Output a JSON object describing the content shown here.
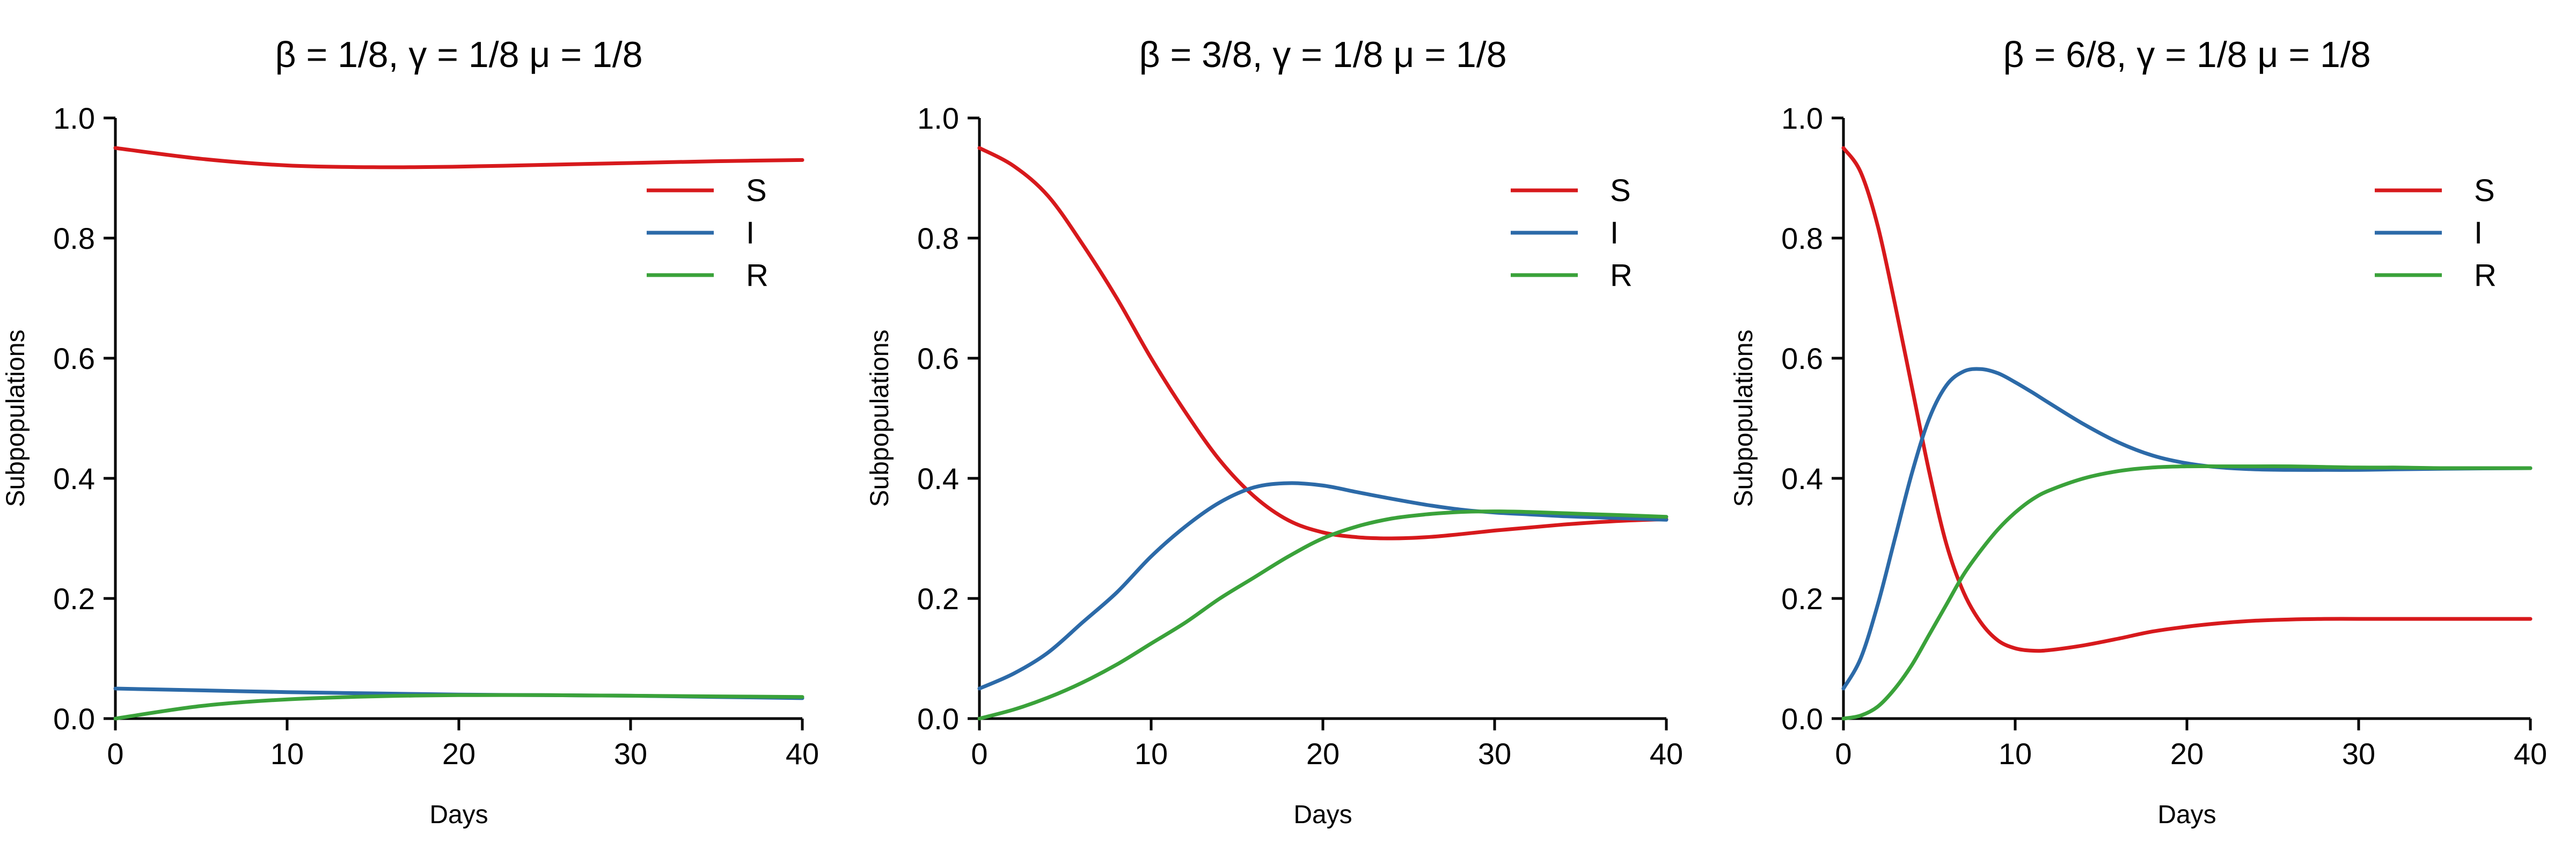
{
  "colors": {
    "S": "#d7191c",
    "I": "#2c6aa8",
    "R": "#3aa23a"
  },
  "chart_data": [
    {
      "type": "line",
      "title": "β  = 1/8, γ  = 1/8 μ  = 1/8",
      "xlabel": "Days",
      "ylabel": "Subpopulations",
      "xlim": [
        0,
        40
      ],
      "ylim": [
        0,
        1
      ],
      "xticks": [
        "0",
        "10",
        "20",
        "30",
        "40"
      ],
      "yticks": [
        "0.0",
        "0.2",
        "0.4",
        "0.6",
        "0.8",
        "1.0"
      ],
      "legend_position": "top-right",
      "x": [
        0,
        5,
        10,
        15,
        20,
        25,
        30,
        35,
        40
      ],
      "series": [
        {
          "name": "S",
          "color": "#d7191c",
          "values": [
            0.95,
            0.932,
            0.921,
            0.918,
            0.919,
            0.922,
            0.925,
            0.928,
            0.93
          ]
        },
        {
          "name": "I",
          "color": "#2c6aa8",
          "values": [
            0.05,
            0.047,
            0.044,
            0.042,
            0.04,
            0.039,
            0.038,
            0.036,
            0.034
          ]
        },
        {
          "name": "R",
          "color": "#3aa23a",
          "values": [
            0.0,
            0.021,
            0.032,
            0.037,
            0.039,
            0.039,
            0.038,
            0.037,
            0.036
          ]
        }
      ]
    },
    {
      "type": "line",
      "title": "β  = 3/8, γ  = 1/8 μ  = 1/8",
      "xlabel": "Days",
      "ylabel": "Subpopulations",
      "xlim": [
        0,
        40
      ],
      "ylim": [
        0,
        1
      ],
      "xticks": [
        "0",
        "10",
        "20",
        "30",
        "40"
      ],
      "yticks": [
        "0.0",
        "0.2",
        "0.4",
        "0.6",
        "0.8",
        "1.0"
      ],
      "legend_position": "top-right",
      "x": [
        0,
        2,
        4,
        6,
        8,
        10,
        12,
        14,
        16,
        18,
        20,
        22,
        24,
        26,
        28,
        30,
        32,
        34,
        36,
        38,
        40
      ],
      "series": [
        {
          "name": "S",
          "color": "#d7191c",
          "values": [
            0.95,
            0.92,
            0.87,
            0.79,
            0.7,
            0.6,
            0.51,
            0.43,
            0.37,
            0.33,
            0.31,
            0.302,
            0.3,
            0.302,
            0.307,
            0.313,
            0.318,
            0.323,
            0.327,
            0.33,
            0.332
          ]
        },
        {
          "name": "I",
          "color": "#2c6aa8",
          "values": [
            0.05,
            0.075,
            0.11,
            0.16,
            0.21,
            0.27,
            0.32,
            0.36,
            0.385,
            0.392,
            0.388,
            0.377,
            0.366,
            0.356,
            0.348,
            0.343,
            0.34,
            0.337,
            0.335,
            0.333,
            0.331
          ]
        },
        {
          "name": "R",
          "color": "#3aa23a",
          "values": [
            0.0,
            0.015,
            0.035,
            0.06,
            0.09,
            0.125,
            0.16,
            0.2,
            0.235,
            0.27,
            0.3,
            0.32,
            0.333,
            0.34,
            0.344,
            0.345,
            0.344,
            0.342,
            0.34,
            0.338,
            0.336
          ]
        }
      ]
    },
    {
      "type": "line",
      "title": "β  = 6/8, γ  = 1/8 μ  = 1/8",
      "xlabel": "Days",
      "ylabel": "Subpopulations",
      "xlim": [
        0,
        40
      ],
      "ylim": [
        0,
        1
      ],
      "xticks": [
        "0",
        "10",
        "20",
        "30",
        "40"
      ],
      "yticks": [
        "0.0",
        "0.2",
        "0.4",
        "0.6",
        "0.8",
        "1.0"
      ],
      "legend_position": "top-right",
      "x": [
        0,
        1,
        2,
        3,
        4,
        5,
        6,
        7,
        8,
        9,
        10,
        11,
        12,
        14,
        16,
        18,
        20,
        22,
        24,
        26,
        28,
        30,
        32,
        35,
        40
      ],
      "series": [
        {
          "name": "S",
          "color": "#d7191c",
          "values": [
            0.95,
            0.91,
            0.82,
            0.69,
            0.55,
            0.41,
            0.29,
            0.21,
            0.16,
            0.13,
            0.117,
            0.113,
            0.114,
            0.122,
            0.133,
            0.145,
            0.153,
            0.159,
            0.163,
            0.165,
            0.166,
            0.166,
            0.166,
            0.166,
            0.166
          ]
        },
        {
          "name": "I",
          "color": "#2c6aa8",
          "values": [
            0.05,
            0.1,
            0.19,
            0.3,
            0.41,
            0.5,
            0.555,
            0.578,
            0.582,
            0.575,
            0.56,
            0.543,
            0.525,
            0.49,
            0.46,
            0.438,
            0.425,
            0.418,
            0.415,
            0.414,
            0.414,
            0.414,
            0.415,
            0.416,
            0.417
          ]
        },
        {
          "name": "R",
          "color": "#3aa23a",
          "values": [
            0.0,
            0.005,
            0.02,
            0.05,
            0.09,
            0.14,
            0.19,
            0.24,
            0.28,
            0.315,
            0.343,
            0.365,
            0.38,
            0.4,
            0.412,
            0.418,
            0.42,
            0.42,
            0.42,
            0.42,
            0.419,
            0.418,
            0.418,
            0.417,
            0.417
          ]
        }
      ]
    }
  ]
}
